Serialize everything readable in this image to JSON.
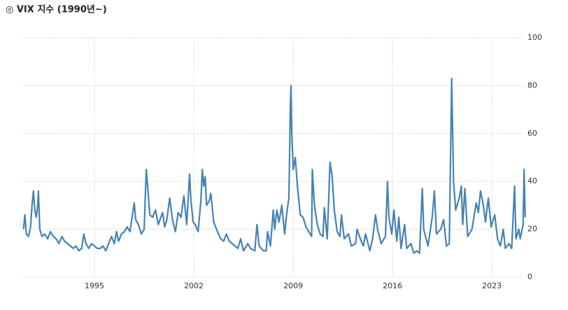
{
  "chart_data": {
    "type": "line",
    "title": "◎ VIX 지수 (1990년~)",
    "x": [
      1990.0,
      1990.1,
      1990.2,
      1990.35,
      1990.5,
      1990.6,
      1990.7,
      1990.8,
      1990.9,
      1991.0,
      1991.05,
      1991.15,
      1991.3,
      1991.5,
      1991.7,
      1991.9,
      1992.1,
      1992.3,
      1992.5,
      1992.7,
      1992.9,
      1993.1,
      1993.3,
      1993.5,
      1993.7,
      1993.9,
      1994.1,
      1994.25,
      1994.4,
      1994.6,
      1994.8,
      1995.0,
      1995.2,
      1995.4,
      1995.6,
      1995.8,
      1996.0,
      1996.2,
      1996.4,
      1996.55,
      1996.7,
      1996.9,
      1997.1,
      1997.3,
      1997.5,
      1997.8,
      1997.9,
      1998.1,
      1998.3,
      1998.5,
      1998.65,
      1998.75,
      1998.9,
      1999.1,
      1999.3,
      1999.5,
      1999.8,
      1999.95,
      2000.1,
      2000.3,
      2000.5,
      2000.7,
      2000.9,
      2001.1,
      2001.3,
      2001.5,
      2001.7,
      2001.8,
      2001.95,
      2002.1,
      2002.3,
      2002.5,
      2002.6,
      2002.7,
      2002.8,
      2002.9,
      2003.1,
      2003.2,
      2003.4,
      2003.6,
      2003.9,
      2004.1,
      2004.3,
      2004.5,
      2004.7,
      2004.9,
      2005.1,
      2005.3,
      2005.5,
      2005.8,
      2006.0,
      2006.3,
      2006.45,
      2006.6,
      2006.9,
      2007.1,
      2007.2,
      2007.4,
      2007.6,
      2007.7,
      2007.85,
      2008.0,
      2008.2,
      2008.4,
      2008.55,
      2008.7,
      2008.8,
      2008.85,
      2008.9,
      2009.0,
      2009.15,
      2009.3,
      2009.5,
      2009.7,
      2009.9,
      2010.1,
      2010.3,
      2010.35,
      2010.5,
      2010.7,
      2010.9,
      2011.1,
      2011.2,
      2011.4,
      2011.6,
      2011.75,
      2011.9,
      2012.1,
      2012.3,
      2012.4,
      2012.6,
      2012.9,
      2013.1,
      2013.4,
      2013.5,
      2013.8,
      2013.95,
      2014.1,
      2014.4,
      2014.6,
      2014.8,
      2014.95,
      2015.2,
      2015.5,
      2015.65,
      2015.75,
      2015.95,
      2016.1,
      2016.3,
      2016.45,
      2016.6,
      2016.85,
      2017.0,
      2017.3,
      2017.5,
      2017.7,
      2017.9,
      2018.1,
      2018.2,
      2018.5,
      2018.8,
      2018.95,
      2019.1,
      2019.4,
      2019.6,
      2019.8,
      2020.0,
      2020.17,
      2020.3,
      2020.45,
      2020.7,
      2020.85,
      2020.95,
      2021.1,
      2021.3,
      2021.6,
      2021.9,
      2022.05,
      2022.2,
      2022.4,
      2022.55,
      2022.75,
      2022.95,
      2023.2,
      2023.4,
      2023.6,
      2023.8,
      2023.95,
      2024.2,
      2024.4,
      2024.6,
      2024.7,
      2024.9,
      2025.0,
      2025.2,
      2025.27,
      2025.35
    ],
    "series": [
      {
        "color": "#4682b4",
        "values": [
          20,
          26,
          18,
          17,
          21,
          30,
          36,
          28,
          25,
          30,
          36,
          20,
          17,
          18,
          16,
          19,
          17,
          16,
          14,
          17,
          15,
          14,
          13,
          12,
          13,
          11,
          12,
          18,
          14,
          12,
          14,
          13,
          12,
          12,
          13,
          11,
          14,
          17,
          14,
          19,
          15,
          18,
          19,
          21,
          19,
          31,
          24,
          22,
          18,
          20,
          45,
          38,
          26,
          25,
          28,
          22,
          27,
          21,
          24,
          33,
          24,
          19,
          27,
          25,
          34,
          22,
          43,
          32,
          23,
          22,
          19,
          32,
          45,
          38,
          42,
          30,
          32,
          35,
          23,
          20,
          16,
          15,
          18,
          15,
          14,
          13,
          12,
          16,
          11,
          14,
          12,
          11,
          22,
          13,
          11,
          11,
          19,
          13,
          28,
          20,
          28,
          23,
          30,
          18,
          27,
          33,
          70,
          80,
          60,
          45,
          50,
          38,
          26,
          25,
          21,
          19,
          17,
          45,
          30,
          22,
          18,
          17,
          29,
          16,
          48,
          42,
          28,
          19,
          17,
          26,
          16,
          18,
          13,
          14,
          20,
          15,
          13,
          18,
          11,
          16,
          26,
          20,
          14,
          17,
          40,
          25,
          18,
          28,
          15,
          25,
          12,
          22,
          12,
          14,
          10,
          11,
          10,
          37,
          20,
          13,
          25,
          36,
          18,
          20,
          24,
          13,
          14,
          83,
          40,
          28,
          33,
          38,
          22,
          37,
          17,
          20,
          31,
          27,
          36,
          30,
          23,
          33,
          21,
          26,
          16,
          13,
          20,
          12,
          14,
          12,
          38,
          16,
          20,
          16,
          22,
          45,
          25
        ]
      }
    ],
    "xlim": [
      1990,
      2025.3
    ],
    "xticks": [
      1995,
      2002,
      2009,
      2016,
      2023
    ],
    "ylim": [
      0,
      100
    ],
    "yticks": [
      0,
      20,
      40,
      60,
      80,
      100
    ],
    "grid": true
  }
}
